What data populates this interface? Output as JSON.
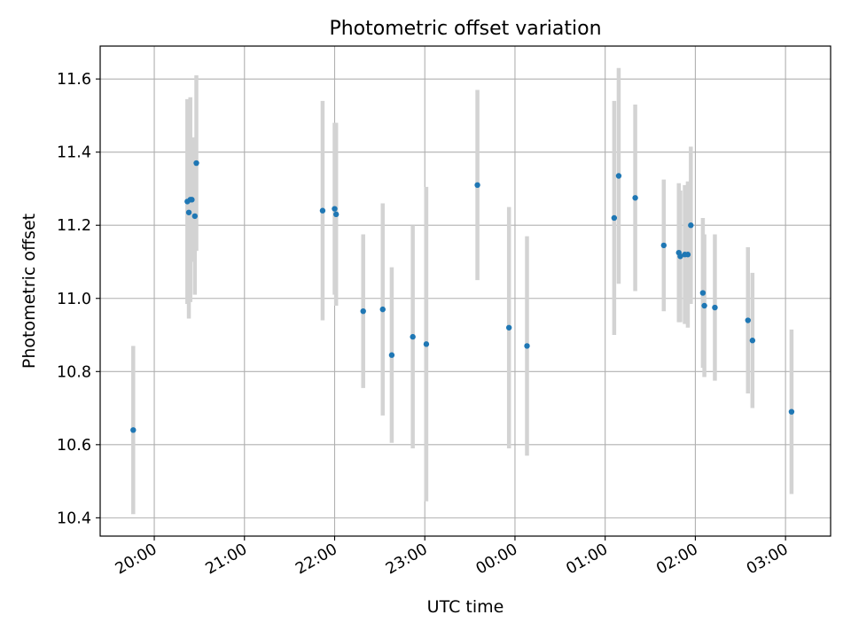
{
  "chart_data": {
    "type": "scatter",
    "title": "Photometric offset variation",
    "xlabel": "UTC time",
    "ylabel": "Photometric offset",
    "x_is_time": true,
    "xlim": [
      "19:24",
      "03:30"
    ],
    "ylim": [
      10.35,
      11.69
    ],
    "x_ticks": [
      "20:00",
      "21:00",
      "22:00",
      "23:00",
      "00:00",
      "01:00",
      "02:00",
      "03:00"
    ],
    "y_ticks": [
      10.4,
      10.6,
      10.8,
      11.0,
      11.2,
      11.4,
      11.6
    ],
    "grid": true,
    "colors": {
      "point": "#1f77b4",
      "errorbar": "#d3d3d3",
      "grid": "#b0b0b0"
    },
    "points": [
      {
        "x": "19:46",
        "y": 10.64,
        "err": 0.23
      },
      {
        "x": "20:22",
        "y": 11.265,
        "err": 0.28
      },
      {
        "x": "20:23",
        "y": 11.235,
        "err": 0.29
      },
      {
        "x": "20:24",
        "y": 11.27,
        "err": 0.28
      },
      {
        "x": "20:25",
        "y": 11.27,
        "err": 0.17
      },
      {
        "x": "20:27",
        "y": 11.225,
        "err": 0.215
      },
      {
        "x": "20:28",
        "y": 11.37,
        "err": 0.24
      },
      {
        "x": "21:52",
        "y": 11.24,
        "err": 0.3
      },
      {
        "x": "22:00",
        "y": 11.245,
        "err": 0.235
      },
      {
        "x": "22:01",
        "y": 11.23,
        "err": 0.25
      },
      {
        "x": "22:19",
        "y": 10.965,
        "err": 0.21
      },
      {
        "x": "22:32",
        "y": 10.97,
        "err": 0.29
      },
      {
        "x": "22:38",
        "y": 10.845,
        "err": 0.24
      },
      {
        "x": "22:52",
        "y": 10.895,
        "err": 0.305
      },
      {
        "x": "23:01",
        "y": 10.875,
        "err": 0.43
      },
      {
        "x": "23:35",
        "y": 11.31,
        "err": 0.26
      },
      {
        "x": "23:56",
        "y": 10.92,
        "err": 0.33
      },
      {
        "x": "00:08",
        "y": 10.87,
        "err": 0.3
      },
      {
        "x": "01:06",
        "y": 11.22,
        "err": 0.32
      },
      {
        "x": "01:09",
        "y": 11.335,
        "err": 0.295
      },
      {
        "x": "01:20",
        "y": 11.275,
        "err": 0.255
      },
      {
        "x": "01:39",
        "y": 11.145,
        "err": 0.18
      },
      {
        "x": "01:49",
        "y": 11.125,
        "err": 0.19
      },
      {
        "x": "01:50",
        "y": 11.115,
        "err": 0.18
      },
      {
        "x": "01:53",
        "y": 11.12,
        "err": 0.19
      },
      {
        "x": "01:55",
        "y": 11.12,
        "err": 0.2
      },
      {
        "x": "01:57",
        "y": 11.2,
        "err": 0.215
      },
      {
        "x": "02:05",
        "y": 11.015,
        "err": 0.205
      },
      {
        "x": "02:06",
        "y": 10.98,
        "err": 0.195
      },
      {
        "x": "02:13",
        "y": 10.975,
        "err": 0.2
      },
      {
        "x": "02:35",
        "y": 10.94,
        "err": 0.2
      },
      {
        "x": "02:38",
        "y": 10.885,
        "err": 0.185
      },
      {
        "x": "03:04",
        "y": 10.69,
        "err": 0.225
      }
    ]
  }
}
